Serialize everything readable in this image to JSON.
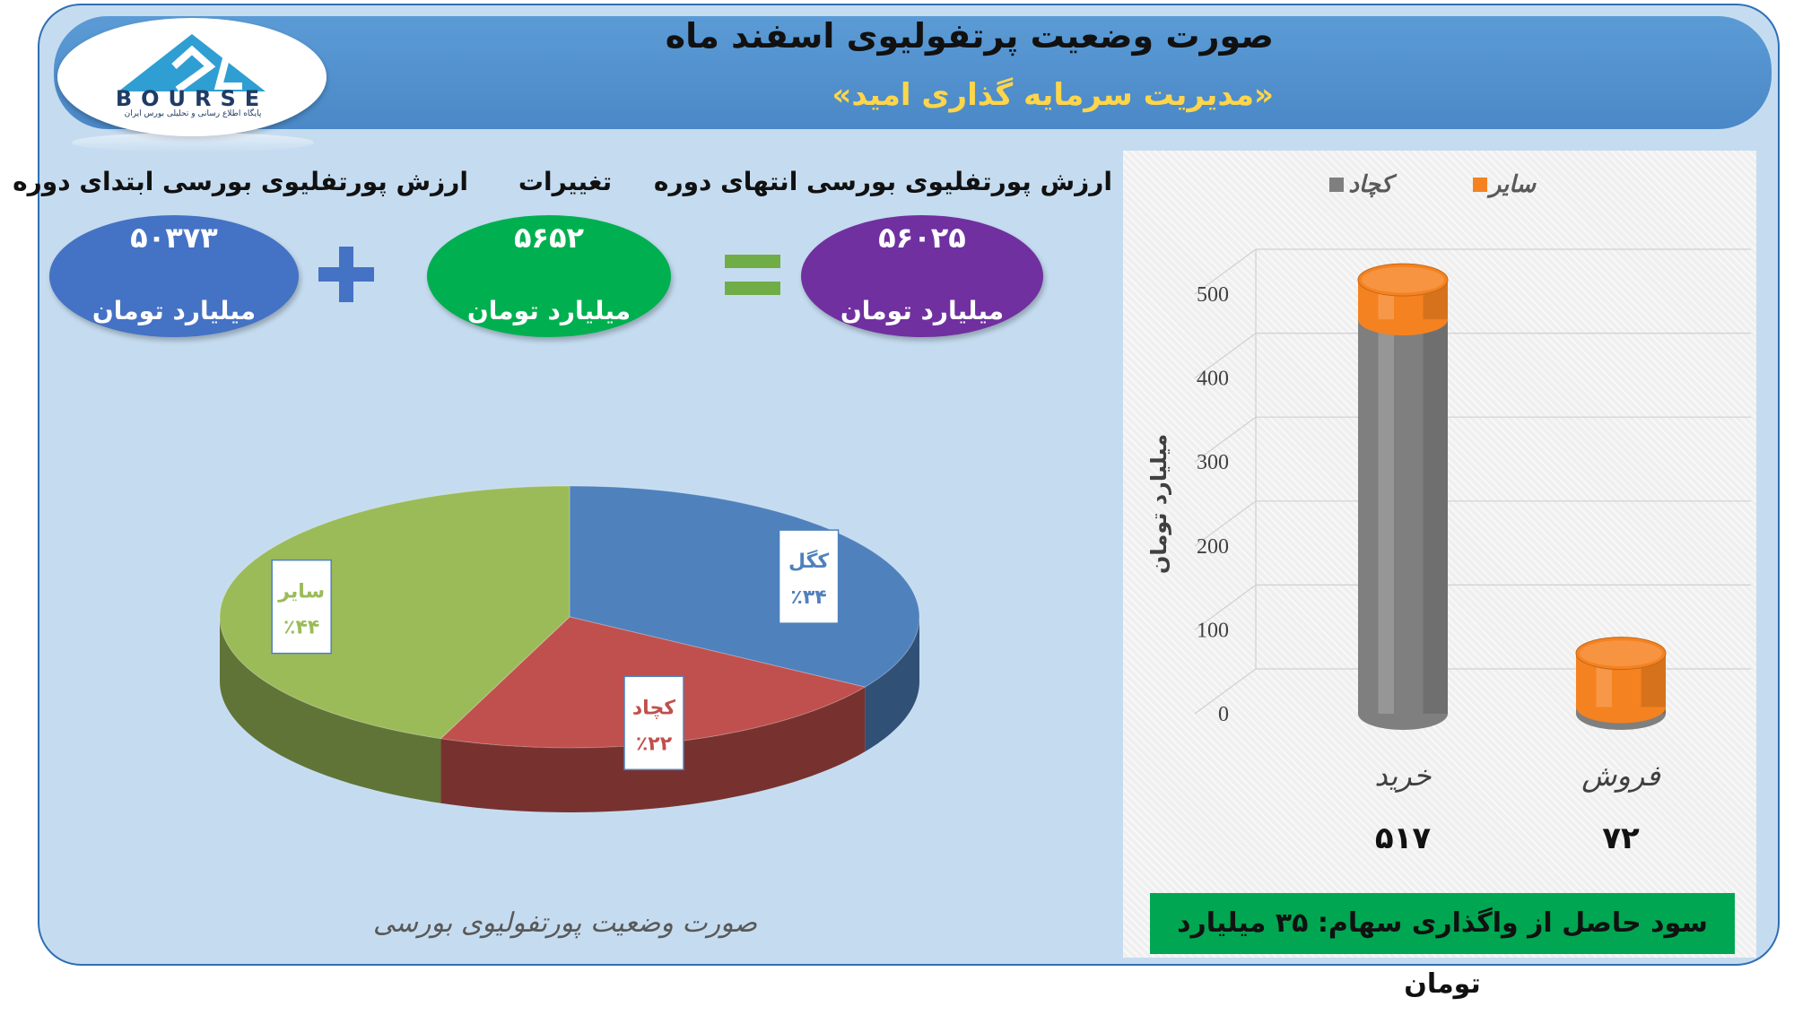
{
  "header": {
    "title": "صورت وضعیت پرتفولیوی اسفند ماه",
    "subtitle": "«مدیریت سرمایه گذاری امید»"
  },
  "logo": {
    "word": "BOURSE",
    "tagline": "پایگاه اطلاع رسانی و تحلیلی بورس ایران",
    "accent_color": "#2f9fd3"
  },
  "metrics": {
    "start": {
      "label": "ارزش پورتفلیوی بورسی ابتدای دوره",
      "value": "۵۰۳۷۳",
      "unit": "میلیارد تومان",
      "color": "#4472c4"
    },
    "change": {
      "label": "تغییرات",
      "value": "۵۶۵۲",
      "unit": "میلیارد تومان",
      "color": "#00b050"
    },
    "end": {
      "label": "ارزش پورتفلیوی بورسی انتهای دوره",
      "value": "۵۶۰۲۵",
      "unit": "میلیارد تومان",
      "color": "#7030a0"
    },
    "plus_color": "#4472c4",
    "equals_color": "#70ad47"
  },
  "footer": {
    "text": "سود حاصل از واگذاری سهام: ۳۵ میلیارد تومان"
  },
  "chart_data": [
    {
      "type": "pie",
      "title": "صورت وضعیت پورتفولیوی بورسی",
      "slices": [
        {
          "name": "کگل",
          "value": 34,
          "label": "٪۳۴",
          "color": "#4f81bd"
        },
        {
          "name": "کچاد",
          "value": 22,
          "label": "٪۲۲",
          "color": "#c0504d"
        },
        {
          "name": "سایر",
          "value": 44,
          "label": "٪۴۴",
          "color": "#9bbb59"
        }
      ]
    },
    {
      "type": "bar",
      "stacked": true,
      "categories": [
        "خرید",
        "فروش"
      ],
      "category_totals": [
        "۵۱۷",
        "۷۲"
      ],
      "series": [
        {
          "name": "کچاد",
          "values": [
            470,
            8
          ],
          "color": "#7f7f7f"
        },
        {
          "name": "سایر",
          "values": [
            47,
            64
          ],
          "color": "#f58220"
        }
      ],
      "ylabel": "میلیارد تومان",
      "ylim": [
        0,
        500
      ],
      "yticks": [
        0,
        100,
        200,
        300,
        400,
        500
      ],
      "legend": "top",
      "grid": true
    }
  ]
}
